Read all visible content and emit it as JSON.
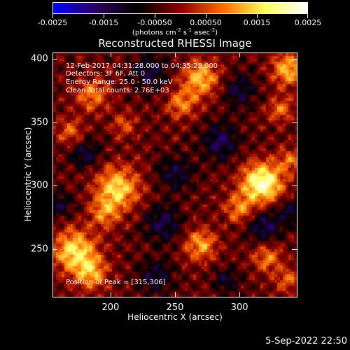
{
  "colorbar": {
    "ticks": [
      "-0.0025",
      "-0.0015",
      "-0.00050",
      "0.00050",
      "0.0015",
      "0.0025"
    ],
    "tick_values": [
      -0.0025,
      -0.0015,
      -0.0005,
      0.0005,
      0.0015,
      0.0025
    ],
    "units_prefix": "(photons cm",
    "units_exp1": "-2",
    "units_mid": " s",
    "units_exp2": "-1",
    "units_mid2": " asec",
    "units_exp3": "-2",
    "units_suffix": ")",
    "range": [
      -0.0025,
      0.0025
    ],
    "colors": [
      "#0000ff",
      "#2a005c",
      "#000000",
      "#8a0000",
      "#ff6a00",
      "#ffff60",
      "#ffffff"
    ]
  },
  "title": "Reconstructed RHESSI Image",
  "annotations": {
    "time_range": "12-Feb-2017 04:31:28.000 to 04:35:28.000",
    "detectors": "Detectors: 3F 6F, Att 0",
    "energy": "Energy Range: 25.0 - 50.0 keV",
    "clean": "Clean    Total counts: 2.76E+03",
    "peak": "Position of Peak = [315,306]"
  },
  "xlabel": "Heliocentric X (arcsec)",
  "ylabel": "Heliocentric Y (arcsec)",
  "footer_date": "5-Sep-2022 22:50",
  "chart_data": {
    "type": "heatmap",
    "title": "Reconstructed RHESSI Image",
    "xlabel": "Heliocentric X (arcsec)",
    "ylabel": "Heliocentric Y (arcsec)",
    "xlim": [
      155,
      345
    ],
    "ylim": [
      212,
      405
    ],
    "xticks": [
      "200",
      "250",
      "300"
    ],
    "xtick_values": [
      200,
      250,
      300
    ],
    "yticks": [
      "250",
      "300",
      "350",
      "400"
    ],
    "ytick_values": [
      250,
      300,
      350,
      400
    ],
    "peak_position": [
      315,
      306
    ],
    "sources": [
      {
        "x": 318,
        "y": 302,
        "amp": 0.0025,
        "r": 11
      },
      {
        "x": 300,
        "y": 282,
        "amp": 0.0012,
        "r": 8
      },
      {
        "x": 205,
        "y": 298,
        "amp": 0.0018,
        "r": 12
      },
      {
        "x": 195,
        "y": 278,
        "amp": 0.0011,
        "r": 8
      },
      {
        "x": 172,
        "y": 248,
        "amp": 0.0019,
        "r": 12
      },
      {
        "x": 185,
        "y": 230,
        "amp": 0.0013,
        "r": 9
      },
      {
        "x": 270,
        "y": 385,
        "amp": 0.0016,
        "r": 10
      },
      {
        "x": 255,
        "y": 365,
        "amp": 0.0012,
        "r": 8
      },
      {
        "x": 338,
        "y": 392,
        "amp": 0.0016,
        "r": 9
      },
      {
        "x": 332,
        "y": 360,
        "amp": 0.0011,
        "r": 7
      },
      {
        "x": 270,
        "y": 253,
        "amp": 0.0014,
        "r": 9
      },
      {
        "x": 322,
        "y": 243,
        "amp": 0.0012,
        "r": 8
      },
      {
        "x": 338,
        "y": 225,
        "amp": 0.001,
        "r": 7
      },
      {
        "x": 185,
        "y": 372,
        "amp": 0.0012,
        "r": 9
      },
      {
        "x": 168,
        "y": 343,
        "amp": 0.001,
        "r": 7
      },
      {
        "x": 210,
        "y": 348,
        "amp": 0.0008,
        "r": 7
      },
      {
        "x": 340,
        "y": 320,
        "amp": 0.001,
        "r": 7
      }
    ],
    "negative_regions": [
      {
        "x": 230,
        "y": 390,
        "amp": -0.0011,
        "r": 9
      },
      {
        "x": 300,
        "y": 375,
        "amp": -0.001,
        "r": 9
      },
      {
        "x": 285,
        "y": 335,
        "amp": -0.0012,
        "r": 10
      },
      {
        "x": 250,
        "y": 310,
        "amp": -0.001,
        "r": 9
      },
      {
        "x": 240,
        "y": 270,
        "amp": -0.0011,
        "r": 10
      },
      {
        "x": 320,
        "y": 268,
        "amp": -0.0012,
        "r": 9
      },
      {
        "x": 180,
        "y": 325,
        "amp": -0.0009,
        "r": 8
      },
      {
        "x": 235,
        "y": 228,
        "amp": -0.001,
        "r": 9
      },
      {
        "x": 160,
        "y": 285,
        "amp": -0.0009,
        "r": 7
      },
      {
        "x": 290,
        "y": 225,
        "amp": -0.0008,
        "r": 7
      },
      {
        "x": 340,
        "y": 280,
        "amp": -0.0009,
        "r": 7
      }
    ],
    "grid": false
  }
}
